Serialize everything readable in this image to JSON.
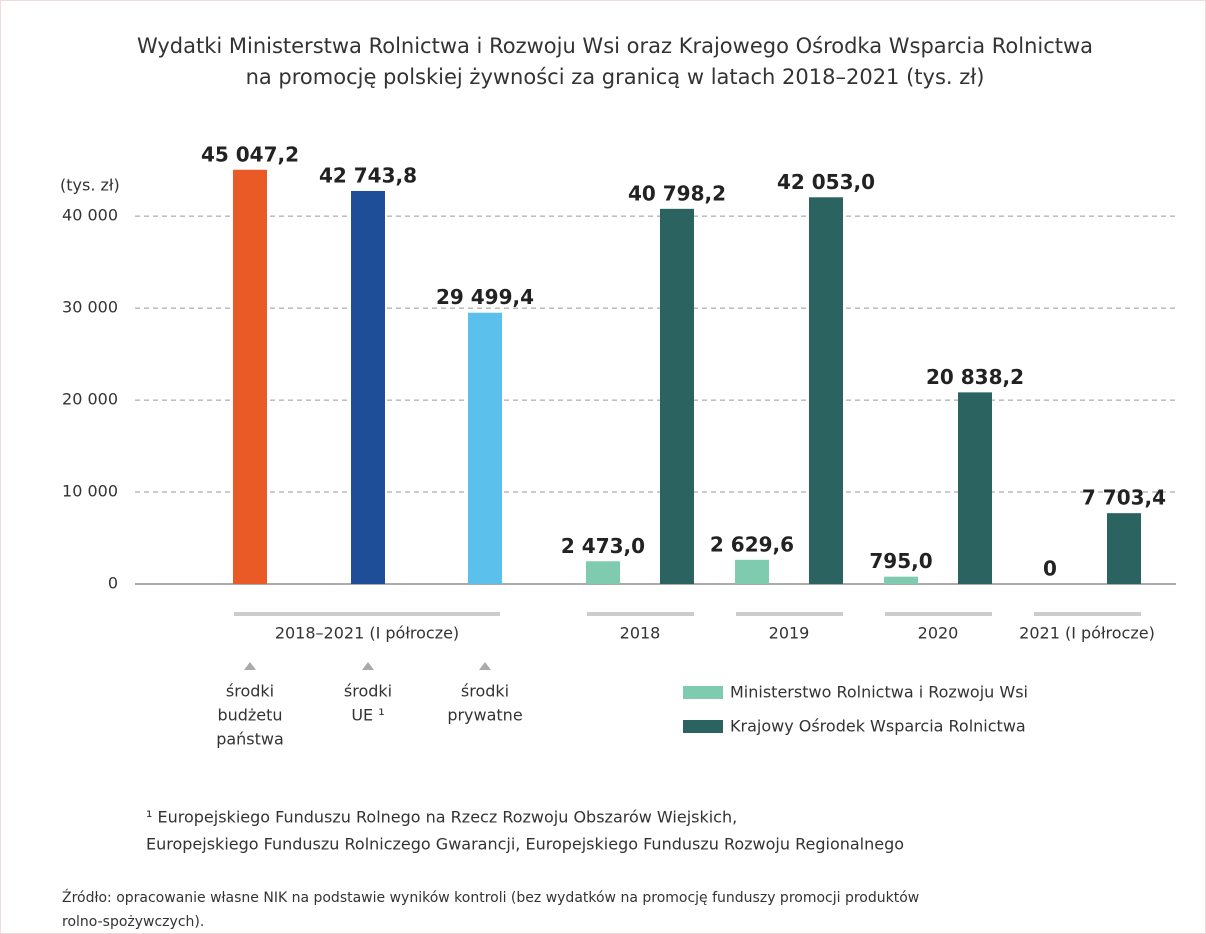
{
  "chart_data": {
    "type": "bar",
    "title": [
      "Wydatki Ministerstwa Rolnictwa i Rozwoju Wsi oraz Krajowego Ośrodka Wsparcia Rolnictwa",
      "na promocję polskiej żywności za granicą w latach 2018–2021 (tys. zł)"
    ],
    "ylabel": "(tys. zł)",
    "ylim": [
      0,
      46000
    ],
    "yticks": [
      0,
      {
        "value": 10000,
        "label": "10 000"
      },
      {
        "value": 20000,
        "label": "20 000"
      },
      {
        "value": 30000,
        "label": "30 000"
      },
      {
        "value": 40000,
        "label": "40 000"
      }
    ],
    "grid": true,
    "breakdown": {
      "category": "2018–2021 (I półrocze)",
      "labels": [
        [
          "środki",
          "budżetu",
          "państwa"
        ],
        [
          "środki",
          "UE ¹"
        ],
        [
          "środki",
          "prywatne"
        ]
      ],
      "colors": [
        "#e95a27",
        "#1f4e98",
        "#5bc0eb"
      ],
      "values": [
        45047.2,
        42743.8,
        29499.4
      ],
      "value_labels": [
        "45 047,2",
        "42 743,8",
        "29 499,4"
      ]
    },
    "categories": [
      "2018",
      "2019",
      "2020",
      "2021 (I półrocze)"
    ],
    "series": [
      {
        "name": "Ministerstwo Rolnictwa i Rozwoju Wsi",
        "color": "#7ecbb0",
        "values": [
          2473.0,
          2629.6,
          795.0,
          0
        ],
        "value_labels": [
          "2 473,0",
          "2 629,6",
          "795,0",
          "0"
        ]
      },
      {
        "name": "Krajowy Ośrodek Wsparcia Rolnictwa",
        "color": "#2a6360",
        "values": [
          40798.2,
          42053.0,
          20838.2,
          7703.4
        ],
        "value_labels": [
          "40 798,2",
          "42 053,0",
          "20 838,2",
          "7 703,4"
        ]
      }
    ],
    "footnote": [
      "¹ Europejskiego Funduszu Rolnego na Rzecz Rozwoju Obszarów Wiejskich,",
      "Europejskiego Funduszu Rolniczego Gwarancji, Europejskiego Funduszu Rozwoju Regionalnego"
    ],
    "source": [
      "Źródło: opracowanie własne NIK na podstawie wyników kontroli (bez wydatków na promocję funduszy promocji produktów",
      "rolno-spożywczych)."
    ]
  }
}
